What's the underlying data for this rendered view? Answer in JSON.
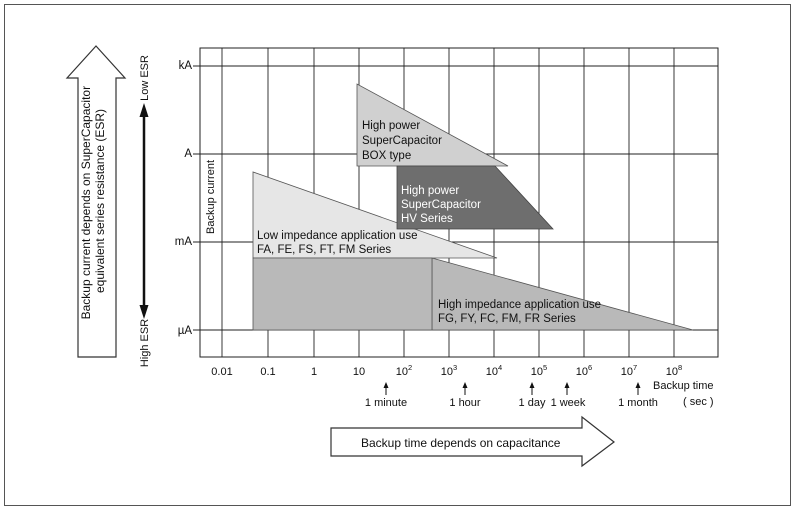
{
  "left_arrow_text": [
    "Backup current depends on SuperCapacitor",
    "equivalent series resistance (ESR)"
  ],
  "esr_low_label": "Low ESR",
  "esr_high_label": "High ESR",
  "y_ticks": [
    "kA",
    "A",
    "mA",
    "µA"
  ],
  "y_axis_label": "Backup current",
  "x_ticks": [
    {
      "base": "0.01",
      "exp": ""
    },
    {
      "base": "0.1",
      "exp": ""
    },
    {
      "base": "1",
      "exp": ""
    },
    {
      "base": "10",
      "exp": ""
    },
    {
      "base": "10",
      "exp": "2"
    },
    {
      "base": "10",
      "exp": "3"
    },
    {
      "base": "10",
      "exp": "4"
    },
    {
      "base": "10",
      "exp": "5"
    },
    {
      "base": "10",
      "exp": "6"
    },
    {
      "base": "10",
      "exp": "7"
    },
    {
      "base": "10",
      "exp": "8"
    }
  ],
  "x_axis_label": [
    "Backup time",
    "( sec )"
  ],
  "time_markers": [
    "1 minute",
    "1 hour",
    "1 day",
    "1 week",
    "1 month"
  ],
  "bottom_arrow_text": "Backup time depends on capacitance",
  "regions": {
    "box_type": [
      "High power",
      "SuperCapacitor",
      "BOX type"
    ],
    "hv_series": [
      "High power",
      "SuperCapacitor",
      "HV Series"
    ],
    "low_impedance": [
      "Low impedance application use",
      "FA, FE, FS, FT, FM Series"
    ],
    "high_impedance": [
      "High impedance application use",
      "FG, FY, FC, FM, FR Series"
    ]
  },
  "colors": {
    "box_type": "#d0d0d0",
    "hv_series": "#6e6e6e",
    "low_impedance": "#e6e6e6",
    "high_impedance": "#b9b9b9",
    "overlap": "#b9b9b9"
  }
}
